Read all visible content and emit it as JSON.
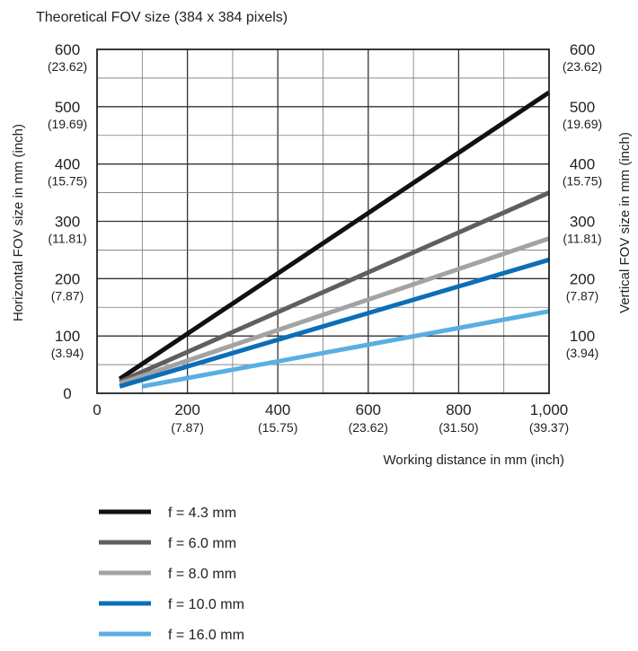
{
  "chart_data": {
    "type": "line",
    "title": "Theoretical FOV size (384 x 384 pixels)",
    "xlabel": "Working distance in mm (inch)",
    "ylabel_left": "Horizontal FOV size in mm (inch)",
    "ylabel_right": "Vertical FOV size in mm (inch)",
    "xlim": [
      0,
      1000
    ],
    "ylim": [
      0,
      600
    ],
    "grid": true,
    "legend_position": "bottom",
    "x_ticks": [
      {
        "value": 0,
        "label": "0",
        "sub": ""
      },
      {
        "value": 200,
        "label": "200",
        "sub": "(7.87)"
      },
      {
        "value": 400,
        "label": "400",
        "sub": "(15.75)"
      },
      {
        "value": 600,
        "label": "600",
        "sub": "(23.62)"
      },
      {
        "value": 800,
        "label": "800",
        "sub": "(31.50)"
      },
      {
        "value": 1000,
        "label": "1,000",
        "sub": "(39.37)"
      }
    ],
    "y_ticks": [
      {
        "value": 0,
        "label": "0",
        "sub": ""
      },
      {
        "value": 100,
        "label": "100",
        "sub": "(3.94)"
      },
      {
        "value": 200,
        "label": "200",
        "sub": "(7.87)"
      },
      {
        "value": 300,
        "label": "300",
        "sub": "(11.81)"
      },
      {
        "value": 400,
        "label": "400",
        "sub": "(15.75)"
      },
      {
        "value": 500,
        "label": "500",
        "sub": "(19.69)"
      },
      {
        "value": 600,
        "label": "600",
        "sub": "(23.62)"
      }
    ],
    "y_ticks_right": [
      {
        "value": 100,
        "label": "100",
        "sub": "(3.94)"
      },
      {
        "value": 200,
        "label": "200",
        "sub": "(7.87)"
      },
      {
        "value": 300,
        "label": "300",
        "sub": "(11.81)"
      },
      {
        "value": 400,
        "label": "400",
        "sub": "(15.75)"
      },
      {
        "value": 500,
        "label": "500",
        "sub": "(19.69)"
      },
      {
        "value": 600,
        "label": "600",
        "sub": "(23.62)"
      }
    ],
    "series": [
      {
        "name": "f = 4.3 mm",
        "color": "#111111",
        "points": [
          [
            50,
            25
          ],
          [
            1000,
            525
          ]
        ]
      },
      {
        "name": "f = 6.0 mm",
        "color": "#5f5f5f",
        "points": [
          [
            50,
            20
          ],
          [
            1000,
            350
          ]
        ]
      },
      {
        "name": "f = 8.0 mm",
        "color": "#a3a3a3",
        "points": [
          [
            50,
            17
          ],
          [
            1000,
            270
          ]
        ]
      },
      {
        "name": "f = 10.0 mm",
        "color": "#0a6fb8",
        "points": [
          [
            50,
            12
          ],
          [
            1000,
            233
          ]
        ]
      },
      {
        "name": "f = 16.0 mm",
        "color": "#5aaee0",
        "points": [
          [
            100,
            12
          ],
          [
            1000,
            143
          ]
        ]
      }
    ]
  }
}
